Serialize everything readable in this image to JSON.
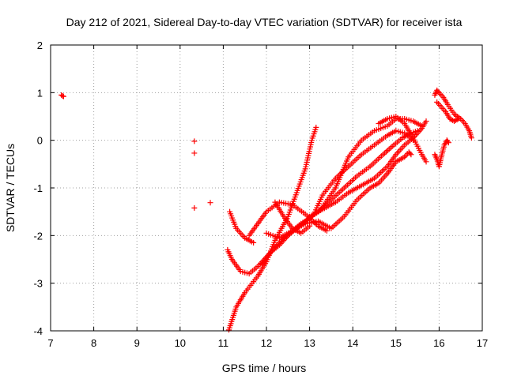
{
  "chart_data": {
    "type": "scatter",
    "title": "Day 212 of 2021, Sidereal Day-to-day VTEC variation (SDTVAR) for receiver ista",
    "xlabel": "GPS time / hours",
    "ylabel": "SDTVAR / TECUs",
    "xlim": [
      7,
      17
    ],
    "ylim": [
      -4,
      2
    ],
    "xticks": [
      7,
      8,
      9,
      10,
      11,
      12,
      13,
      14,
      15,
      16,
      17
    ],
    "yticks": [
      -4,
      -3,
      -2,
      -1,
      0,
      1,
      2
    ],
    "grid": true,
    "marker": "+",
    "series_color": "#ff0000",
    "isolated_points": [
      {
        "x": 7.25,
        "y": 0.95
      },
      {
        "x": 7.28,
        "y": 0.93
      },
      {
        "x": 7.3,
        "y": 0.92
      },
      {
        "x": 10.33,
        "y": -0.02
      },
      {
        "x": 10.33,
        "y": -0.27
      },
      {
        "x": 10.33,
        "y": -1.42
      },
      {
        "x": 10.7,
        "y": -1.31
      }
    ],
    "tracks": [
      {
        "name": "track-a",
        "x": [
          11.13,
          11.3,
          11.5,
          11.8,
          12.0,
          12.2,
          12.5,
          12.7,
          12.9,
          13.05,
          13.15
        ],
        "y": [
          -3.98,
          -3.5,
          -3.2,
          -2.85,
          -2.55,
          -2.1,
          -1.6,
          -1.1,
          -0.6,
          0.0,
          0.27
        ]
      },
      {
        "name": "track-b",
        "x": [
          11.1,
          11.2,
          11.4,
          11.6,
          11.8,
          12.0,
          12.2,
          12.4,
          12.6,
          12.8,
          13.0
        ],
        "y": [
          -2.3,
          -2.5,
          -2.75,
          -2.8,
          -2.65,
          -2.45,
          -2.25,
          -2.05,
          -1.9,
          -1.75,
          -1.65
        ]
      },
      {
        "name": "track-c",
        "x": [
          11.15,
          11.3,
          11.5,
          11.7
        ],
        "y": [
          -1.5,
          -1.85,
          -2.05,
          -2.15
        ]
      },
      {
        "name": "track-d",
        "x": [
          11.9,
          12.1,
          12.3,
          12.5,
          12.7,
          12.9,
          13.2,
          13.5,
          13.8,
          14.1,
          14.4,
          14.7,
          14.95,
          15.15,
          15.35,
          15.5
        ],
        "y": [
          -2.6,
          -2.35,
          -2.2,
          -2.0,
          -1.85,
          -1.7,
          -1.5,
          -1.25,
          -1.0,
          -0.75,
          -0.55,
          -0.3,
          -0.1,
          0.05,
          0.15,
          0.2
        ]
      },
      {
        "name": "track-e",
        "x": [
          13.0,
          13.3,
          13.6,
          13.9,
          14.2,
          14.5,
          14.8,
          15.0,
          15.2,
          15.4,
          15.6,
          15.7
        ],
        "y": [
          -1.6,
          -1.45,
          -1.3,
          -1.1,
          -0.95,
          -0.8,
          -0.55,
          -0.3,
          -0.1,
          0.05,
          0.25,
          0.4
        ]
      },
      {
        "name": "track-f",
        "x": [
          12.0,
          12.3,
          12.6,
          12.9,
          13.2,
          13.5,
          13.8,
          14.1,
          14.4,
          14.6,
          14.8,
          15.0,
          15.2,
          15.3,
          15.35
        ],
        "y": [
          -1.95,
          -2.05,
          -1.9,
          -1.75,
          -1.7,
          -1.85,
          -1.6,
          -1.25,
          -1.0,
          -0.9,
          -0.7,
          -0.45,
          -0.35,
          -0.25,
          -0.3
        ]
      },
      {
        "name": "track-g",
        "x": [
          13.1,
          13.3,
          13.6,
          13.9,
          14.2,
          14.5,
          14.8,
          15.0,
          15.2,
          15.4
        ],
        "y": [
          -1.55,
          -1.15,
          -0.8,
          -0.55,
          -0.3,
          -0.1,
          0.1,
          0.2,
          0.15,
          0.0
        ]
      },
      {
        "name": "track-h",
        "x": [
          13.3,
          13.6,
          13.9,
          14.2,
          14.5,
          14.8,
          15.0,
          15.2,
          15.4,
          15.6
        ],
        "y": [
          -1.4,
          -1.0,
          -0.35,
          0.0,
          0.2,
          0.3,
          0.45,
          0.45,
          0.4,
          0.3
        ]
      },
      {
        "name": "track-i",
        "x": [
          14.6,
          14.8,
          15.0,
          15.2,
          15.4,
          15.6,
          15.7
        ],
        "y": [
          0.35,
          0.45,
          0.5,
          0.35,
          0.05,
          -0.3,
          -0.45
        ]
      },
      {
        "name": "track-j",
        "x": [
          11.6,
          11.8,
          12.0,
          12.3,
          12.6,
          12.9,
          13.2,
          13.4
        ],
        "y": [
          -2.0,
          -1.75,
          -1.5,
          -1.3,
          -1.35,
          -1.55,
          -1.8,
          -1.9
        ]
      },
      {
        "name": "track-k",
        "x": [
          12.2,
          12.4,
          12.6,
          12.8,
          13.0
        ],
        "y": [
          -1.3,
          -1.6,
          -1.85,
          -1.95,
          -1.8
        ]
      },
      {
        "name": "track-l",
        "x": [
          15.9,
          15.95,
          16.0,
          16.1,
          16.2,
          16.35,
          16.5,
          16.6,
          16.7,
          16.75
        ],
        "y": [
          0.95,
          1.05,
          1.0,
          0.9,
          0.75,
          0.55,
          0.45,
          0.35,
          0.2,
          0.05
        ]
      },
      {
        "name": "track-m",
        "x": [
          15.95,
          16.05,
          16.15,
          16.25,
          16.35,
          16.45
        ],
        "y": [
          0.8,
          0.7,
          0.6,
          0.45,
          0.4,
          0.45
        ]
      },
      {
        "name": "track-n",
        "x": [
          15.9,
          15.95,
          16.0,
          16.05,
          16.12,
          16.18,
          16.22
        ],
        "y": [
          -0.3,
          -0.4,
          -0.55,
          -0.35,
          -0.1,
          0.0,
          -0.05
        ]
      }
    ]
  }
}
